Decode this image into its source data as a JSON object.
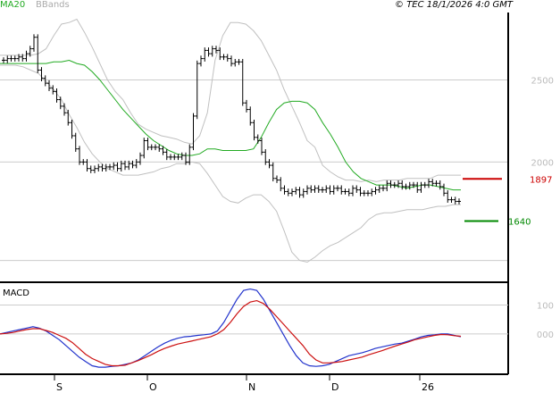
{
  "header": {
    "ma_label": "MA20",
    "bb_label": "BBands",
    "copyright": "© TEC 18/1/2026 4:0 GMT"
  },
  "macd_label": "MACD",
  "colors": {
    "price": "#000000",
    "ma20": "#22aa22",
    "bbands": "#c0c0c0",
    "grid": "#cccccc",
    "resistance": "#cc0000",
    "support": "#008800",
    "macd": "#2233cc",
    "signal": "#cc1111"
  },
  "chart_data": [
    {
      "type": "line",
      "title": "",
      "x_ticks": [
        "S",
        "O",
        "N",
        "D",
        "26"
      ],
      "y_ticks": [
        "2500",
        "2000"
      ],
      "ylim": [
        1300,
        2900
      ],
      "grid": true,
      "levels": [
        {
          "label": "1897",
          "value": 1897,
          "color": "#cc0000"
        },
        {
          "label": "1640",
          "value": 1640,
          "color": "#008800"
        }
      ],
      "series": [
        {
          "name": "price",
          "values": [
            2620,
            2630,
            2630,
            2630,
            2640,
            2630,
            2660,
            2690,
            2760,
            2560,
            2510,
            2480,
            2450,
            2430,
            2380,
            2340,
            2300,
            2240,
            2160,
            2080,
            2000,
            2000,
            1960,
            1950,
            1960,
            1970,
            1960,
            1970,
            1970,
            1980,
            1960,
            1990,
            1970,
            1990,
            1980,
            2000,
            2040,
            2130,
            2090,
            2090,
            2090,
            2080,
            2060,
            2030,
            2030,
            2030,
            2030,
            2040,
            2000,
            2090,
            2280,
            2600,
            2630,
            2680,
            2660,
            2690,
            2680,
            2640,
            2640,
            2630,
            2600,
            2610,
            2610,
            2360,
            2320,
            2240,
            2150,
            2130,
            2060,
            2000,
            1980,
            1900,
            1890,
            1840,
            1820,
            1810,
            1820,
            1830,
            1800,
            1820,
            1840,
            1830,
            1840,
            1830,
            1830,
            1840,
            1820,
            1840,
            1840,
            1820,
            1820,
            1810,
            1840,
            1830,
            1810,
            1810,
            1810,
            1820,
            1830,
            1840,
            1840,
            1870,
            1860,
            1860,
            1870,
            1850,
            1850,
            1860,
            1860,
            1830,
            1860,
            1860,
            1880,
            1870,
            1870,
            1850,
            1810,
            1770,
            1770,
            1760,
            1760
          ]
        },
        {
          "name": "MA20",
          "values": [
            2600,
            2600,
            2600,
            2600,
            2600,
            2600,
            2600,
            2610,
            2610,
            2620,
            2600,
            2590,
            2550,
            2500,
            2440,
            2380,
            2320,
            2270,
            2220,
            2170,
            2130,
            2100,
            2070,
            2050,
            2040,
            2040,
            2050,
            2080,
            2080,
            2070,
            2070,
            2070,
            2070,
            2080,
            2150,
            2240,
            2320,
            2360,
            2370,
            2370,
            2360,
            2320,
            2240,
            2170,
            2090,
            2000,
            1940,
            1900,
            1880,
            1860,
            1860,
            1860,
            1850,
            1840,
            1850,
            1860,
            1860,
            1850,
            1840,
            1830,
            1830
          ]
        },
        {
          "name": "BB upper",
          "values": [
            2650,
            2650,
            2650,
            2650,
            2650,
            2660,
            2690,
            2770,
            2840,
            2850,
            2870,
            2790,
            2700,
            2600,
            2500,
            2430,
            2380,
            2300,
            2230,
            2200,
            2180,
            2160,
            2150,
            2140,
            2120,
            2110,
            2160,
            2300,
            2620,
            2770,
            2850,
            2850,
            2840,
            2800,
            2740,
            2650,
            2560,
            2440,
            2340,
            2240,
            2130,
            2090,
            1980,
            1940,
            1910,
            1890,
            1890,
            1880,
            1890,
            1880,
            1890,
            1890,
            1890,
            1900,
            1900,
            1900,
            1900,
            1920,
            1920,
            1920,
            1920
          ]
        },
        {
          "name": "BB lower",
          "values": [
            2590,
            2590,
            2590,
            2580,
            2560,
            2540,
            2490,
            2440,
            2380,
            2290,
            2210,
            2120,
            2050,
            2000,
            1960,
            1940,
            1920,
            1920,
            1920,
            1930,
            1940,
            1960,
            1970,
            1990,
            1990,
            2000,
            1990,
            1930,
            1860,
            1790,
            1760,
            1750,
            1780,
            1800,
            1800,
            1760,
            1700,
            1580,
            1450,
            1400,
            1390,
            1420,
            1460,
            1490,
            1510,
            1540,
            1570,
            1600,
            1650,
            1680,
            1690,
            1690,
            1700,
            1710,
            1710,
            1710,
            1720,
            1730,
            1730,
            1740,
            1740
          ]
        }
      ]
    },
    {
      "type": "line",
      "title": "MACD",
      "x_ticks": [
        "S",
        "O",
        "N",
        "D",
        "26"
      ],
      "y_ticks": [
        "100",
        "000"
      ],
      "ylim": [
        -130,
        160
      ],
      "series": [
        {
          "name": "MACD",
          "values": [
            0,
            5,
            10,
            15,
            20,
            25,
            20,
            10,
            -5,
            -20,
            -40,
            -60,
            -80,
            -95,
            -110,
            -115,
            -115,
            -112,
            -110,
            -105,
            -100,
            -90,
            -75,
            -60,
            -45,
            -32,
            -22,
            -15,
            -10,
            -8,
            -5,
            -3,
            0,
            10,
            40,
            80,
            120,
            150,
            155,
            150,
            120,
            80,
            40,
            0,
            -40,
            -75,
            -100,
            -110,
            -112,
            -110,
            -105,
            -95,
            -85,
            -75,
            -70,
            -65,
            -58,
            -50,
            -45,
            -40,
            -35,
            -32,
            -25,
            -18,
            -10,
            -5,
            -3,
            0,
            0,
            -5,
            -10
          ]
        },
        {
          "name": "Signal",
          "values": [
            0,
            2,
            5,
            10,
            15,
            18,
            18,
            12,
            5,
            -5,
            -15,
            -30,
            -50,
            -70,
            -85,
            -95,
            -105,
            -110,
            -110,
            -108,
            -100,
            -92,
            -82,
            -72,
            -60,
            -50,
            -42,
            -35,
            -30,
            -25,
            -20,
            -15,
            -10,
            0,
            15,
            40,
            70,
            95,
            110,
            115,
            105,
            85,
            60,
            35,
            10,
            -15,
            -40,
            -70,
            -90,
            -100,
            -100,
            -98,
            -95,
            -90,
            -85,
            -80,
            -72,
            -65,
            -58,
            -50,
            -42,
            -35,
            -28,
            -20,
            -15,
            -10,
            -5,
            -2,
            -3,
            -6,
            -8
          ]
        }
      ]
    }
  ]
}
